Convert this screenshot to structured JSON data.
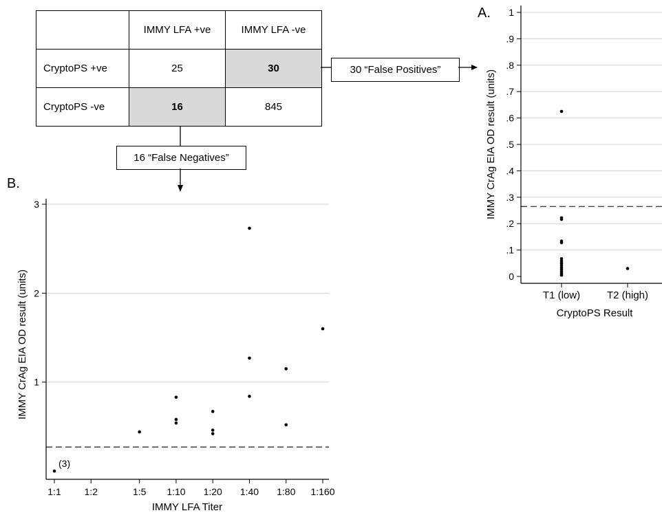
{
  "table": {
    "col_headers": [
      "",
      "IMMY LFA +ve",
      "IMMY LFA -ve"
    ],
    "rows": [
      {
        "label": "CryptoPS +ve",
        "cells": [
          "25",
          "30"
        ]
      },
      {
        "label": "CryptoPS -ve",
        "cells": [
          "16",
          "845"
        ]
      }
    ]
  },
  "callouts": {
    "false_positives": "30 “False Positives”",
    "false_negatives": "16 “False Negatives”"
  },
  "chart_data": [
    {
      "panel": "A.",
      "type": "scatter",
      "xlabel": "CryptoPS Result",
      "ylabel": "IMMY CrAg EIA OD result (units)",
      "categories": [
        "T1 (low)",
        "T2 (high)"
      ],
      "ylim": [
        0,
        1
      ],
      "yticks": [
        0,
        0.1,
        0.2,
        0.3,
        0.4,
        0.5,
        0.6,
        0.7,
        0.8,
        0.9,
        1
      ],
      "ytick_labels": [
        "0",
        ".1",
        ".2",
        ".3",
        ".4",
        ".5",
        ".6",
        ".7",
        ".8",
        ".9",
        "1"
      ],
      "grid": true,
      "cutoff": 0.265,
      "points": [
        {
          "x": "T1 (low)",
          "y": 0.625
        },
        {
          "x": "T1 (low)",
          "y": 0.222
        },
        {
          "x": "T1 (low)",
          "y": 0.216
        },
        {
          "x": "T1 (low)",
          "y": 0.134
        },
        {
          "x": "T1 (low)",
          "y": 0.128
        },
        {
          "x": "T1 (low)",
          "y": 0.067
        },
        {
          "x": "T1 (low)",
          "y": 0.058
        },
        {
          "x": "T1 (low)",
          "y": 0.05
        },
        {
          "x": "T1 (low)",
          "y": 0.042
        },
        {
          "x": "T1 (low)",
          "y": 0.034
        },
        {
          "x": "T1 (low)",
          "y": 0.026
        },
        {
          "x": "T1 (low)",
          "y": 0.018
        },
        {
          "x": "T1 (low)",
          "y": 0.01
        },
        {
          "x": "T1 (low)",
          "y": 0.005
        },
        {
          "x": "T2 (high)",
          "y": 0.03
        }
      ]
    },
    {
      "panel": "B.",
      "type": "scatter",
      "xlabel": "IMMY LFA Titer",
      "ylabel": "IMMY CrAg EIA OD result (units)",
      "xtick_labels": [
        "1:1",
        "1:2",
        "1:5",
        "1:10",
        "1:20",
        "1:40",
        "1:80",
        "1:160"
      ],
      "xtick_dilutions": [
        1,
        2,
        5,
        10,
        20,
        40,
        80,
        160
      ],
      "x_scale": "log",
      "yticks": [
        1,
        2,
        3
      ],
      "ytick_labels": [
        "1",
        "2",
        "3"
      ],
      "ylim": [
        0,
        3
      ],
      "grid": true,
      "cutoff": 0.27,
      "annotation": "(3)",
      "points": [
        {
          "x": 1,
          "y": 0.0
        },
        {
          "x": 5,
          "y": 0.44
        },
        {
          "x": 10,
          "y": 0.83
        },
        {
          "x": 10,
          "y": 0.58
        },
        {
          "x": 10,
          "y": 0.54
        },
        {
          "x": 20,
          "y": 0.67
        },
        {
          "x": 20,
          "y": 0.46
        },
        {
          "x": 20,
          "y": 0.42
        },
        {
          "x": 40,
          "y": 2.73
        },
        {
          "x": 40,
          "y": 1.27
        },
        {
          "x": 40,
          "y": 0.84
        },
        {
          "x": 80,
          "y": 1.15
        },
        {
          "x": 80,
          "y": 0.52
        },
        {
          "x": 160,
          "y": 1.6
        }
      ]
    }
  ]
}
